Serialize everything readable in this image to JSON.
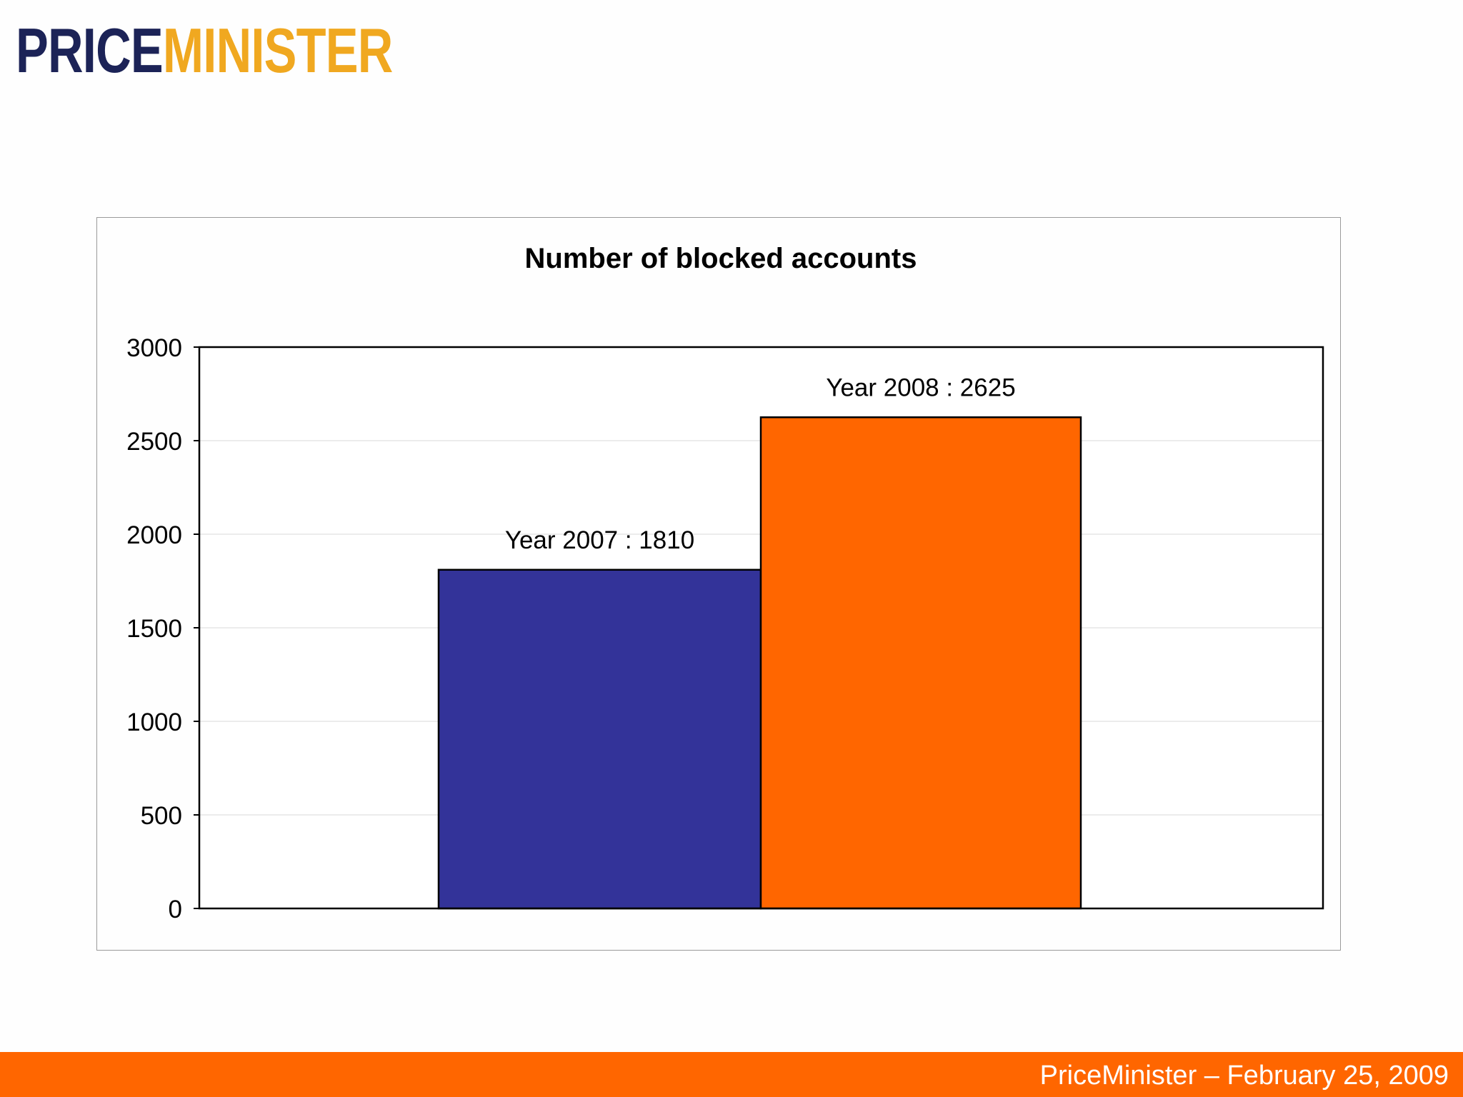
{
  "logo": {
    "part1": "PRICE",
    "part2": "MINISTER",
    "colors": {
      "part1": "#1c2357",
      "part2": "#f0a820"
    }
  },
  "footer": {
    "text": "PriceMinister – February 25, 2009",
    "background": "#ff6600"
  },
  "chart_data": {
    "type": "bar",
    "title": "Number of blocked accounts",
    "xlabel": "",
    "ylabel": "",
    "ylim": [
      0,
      3000
    ],
    "yticks": [
      0,
      500,
      1000,
      1500,
      2000,
      2500,
      3000
    ],
    "grid": true,
    "legend": "none",
    "categories": [
      "Year 2007",
      "Year 2008"
    ],
    "values": [
      1810,
      2625
    ],
    "data_labels": [
      "Year 2007 : 1810",
      "Year 2008 : 2625"
    ],
    "colors": [
      "#333399",
      "#ff6600"
    ]
  }
}
